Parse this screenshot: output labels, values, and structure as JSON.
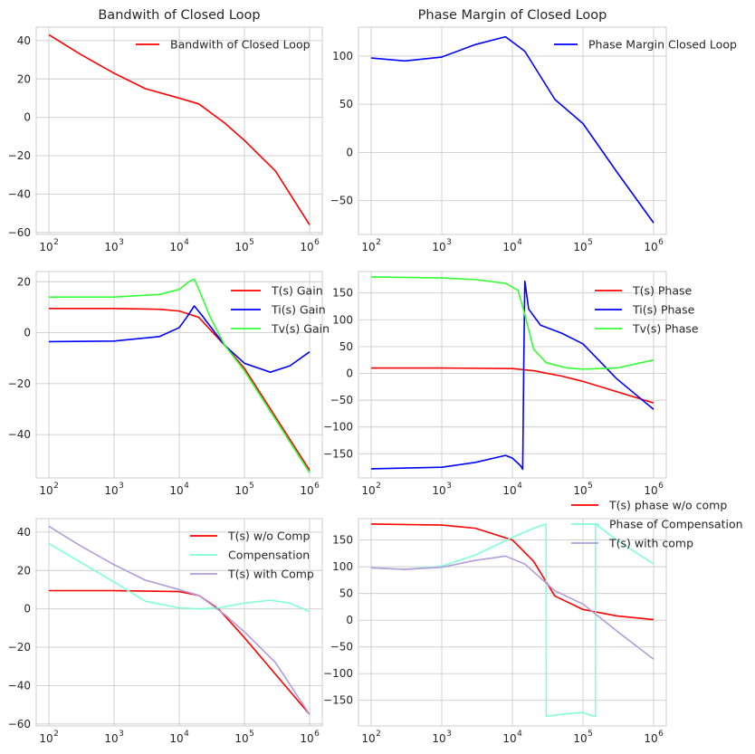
{
  "chart_data": [
    {
      "type": "line",
      "title": "Bandwith of Closed Loop",
      "x_scale": "log",
      "xlim": [
        100,
        1000000
      ],
      "ylim": [
        -61,
        47
      ],
      "xticks": [
        {
          "v": 100,
          "e": "2"
        },
        {
          "v": 1000,
          "e": "3"
        },
        {
          "v": 10000,
          "e": "4"
        },
        {
          "v": 100000,
          "e": "5"
        },
        {
          "v": 1000000,
          "e": "6"
        }
      ],
      "yticks": [
        40,
        20,
        0,
        -20,
        -40,
        -60
      ],
      "grid": true,
      "legend_position": "top-right",
      "series": [
        {
          "name": "Bandwith of Closed Loop",
          "color": "#ff0000",
          "x": [
            100,
            300,
            1000,
            3000,
            10000,
            20000,
            50000,
            100000,
            300000,
            1000000
          ],
          "y": [
            43,
            33,
            23,
            15,
            10,
            7,
            -3,
            -12,
            -28,
            -56
          ]
        }
      ]
    },
    {
      "type": "line",
      "title": "Phase Margin of Closed Loop",
      "x_scale": "log",
      "xlim": [
        100,
        1000000
      ],
      "ylim": [
        -85,
        130
      ],
      "xticks": [
        {
          "v": 100,
          "e": "2"
        },
        {
          "v": 1000,
          "e": "3"
        },
        {
          "v": 10000,
          "e": "4"
        },
        {
          "v": 100000,
          "e": "5"
        },
        {
          "v": 1000000,
          "e": "6"
        }
      ],
      "yticks": [
        100,
        50,
        0,
        -50
      ],
      "grid": true,
      "legend_position": "top-right",
      "series": [
        {
          "name": "Phase Margin Closed Loop",
          "color": "#0000ff",
          "x": [
            100,
            300,
            1000,
            3000,
            8000,
            15000,
            40000,
            100000,
            300000,
            1000000
          ],
          "y": [
            98,
            95,
            99,
            112,
            120,
            105,
            55,
            30,
            -20,
            -73
          ]
        }
      ]
    },
    {
      "type": "line",
      "x_scale": "log",
      "xlim": [
        100,
        1000000
      ],
      "ylim": [
        -57,
        24
      ],
      "xticks": [
        {
          "v": 100,
          "e": "2"
        },
        {
          "v": 1000,
          "e": "3"
        },
        {
          "v": 10000,
          "e": "4"
        },
        {
          "v": 100000,
          "e": "5"
        },
        {
          "v": 1000000,
          "e": "6"
        }
      ],
      "yticks": [
        20,
        0,
        -20,
        -40
      ],
      "grid": true,
      "legend_position": "top-right",
      "series": [
        {
          "name": "T(s) Gain",
          "color": "#ff0000",
          "x": [
            100,
            1000,
            5000,
            10000,
            20000,
            50000,
            100000,
            1000000
          ],
          "y": [
            9.5,
            9.5,
            9.2,
            8.5,
            6,
            -5,
            -14,
            -54
          ]
        },
        {
          "name": "Ti(s) Gain",
          "color": "#0000ff",
          "x": [
            100,
            1000,
            5000,
            10000,
            13000,
            17000,
            22000,
            50000,
            100000,
            250000,
            500000,
            1000000
          ],
          "y": [
            -3.5,
            -3.3,
            -1.5,
            2,
            6,
            10.5,
            7,
            -5,
            -12,
            -15.5,
            -13,
            -7.5
          ]
        },
        {
          "name": "Tv(s) Gain",
          "color": "#33ff33",
          "x": [
            100,
            1000,
            5000,
            10000,
            14000,
            17000,
            20000,
            30000,
            50000,
            100000,
            1000000
          ],
          "y": [
            14,
            14,
            15,
            17,
            20,
            21,
            17,
            6,
            -5,
            -15,
            -55
          ]
        }
      ]
    },
    {
      "type": "line",
      "x_scale": "log",
      "xlim": [
        100,
        1000000
      ],
      "ylim": [
        -195,
        190
      ],
      "xticks": [
        {
          "v": 100,
          "e": "2"
        },
        {
          "v": 1000,
          "e": "3"
        },
        {
          "v": 10000,
          "e": "4"
        },
        {
          "v": 100000,
          "e": "5"
        },
        {
          "v": 1000000,
          "e": "6"
        }
      ],
      "yticks": [
        150,
        100,
        50,
        0,
        -50,
        -100,
        -150
      ],
      "grid": true,
      "legend_position": "top-right",
      "series": [
        {
          "name": "T(s) Phase",
          "color": "#ff0000",
          "x": [
            100,
            1000,
            10000,
            20000,
            50000,
            100000,
            1000000
          ],
          "y": [
            10,
            10,
            9,
            5,
            -5,
            -15,
            -55
          ]
        },
        {
          "name": "Ti(s) Phase",
          "color": "#0000ff",
          "x": [
            100,
            1000,
            3000,
            8000,
            10000,
            13000,
            14000,
            14500,
            15000,
            17000,
            25000,
            50000,
            100000,
            300000,
            1000000
          ],
          "y": [
            -178,
            -175,
            -166,
            -153,
            -158,
            -172,
            -179,
            20,
            172,
            120,
            90,
            75,
            55,
            -10,
            -67
          ]
        },
        {
          "name": "Tv(s) Phase",
          "color": "#33ff33",
          "x": [
            100,
            1000,
            3000,
            8000,
            12000,
            15000,
            20000,
            30000,
            60000,
            100000,
            300000,
            1000000
          ],
          "y": [
            180,
            178,
            175,
            168,
            155,
            110,
            45,
            20,
            10,
            8,
            10,
            25
          ]
        }
      ]
    },
    {
      "type": "line",
      "x_scale": "log",
      "xlim": [
        100,
        1000000
      ],
      "ylim": [
        -61,
        47
      ],
      "xticks": [
        {
          "v": 100,
          "e": "2"
        },
        {
          "v": 1000,
          "e": "3"
        },
        {
          "v": 10000,
          "e": "4"
        },
        {
          "v": 100000,
          "e": "5"
        },
        {
          "v": 1000000,
          "e": "6"
        }
      ],
      "yticks": [
        40,
        20,
        0,
        -20,
        -40,
        -60
      ],
      "grid": true,
      "legend_position": "top-right",
      "series": [
        {
          "name": "T(s) w/o Comp",
          "color": "#ff0000",
          "x": [
            100,
            1000,
            10000,
            20000,
            40000,
            100000,
            1000000
          ],
          "y": [
            9.5,
            9.5,
            9,
            7,
            0,
            -15,
            -55
          ]
        },
        {
          "name": "Compensation",
          "color": "#80ffd4",
          "x": [
            100,
            1000,
            3000,
            10000,
            20000,
            40000,
            100000,
            250000,
            500000,
            1000000
          ],
          "y": [
            34,
            14,
            4,
            0.5,
            0,
            0.5,
            3,
            4.5,
            3,
            -1.5
          ]
        },
        {
          "name": "T(s) with Comp",
          "color": "#b19cd9",
          "x": [
            100,
            300,
            1000,
            3000,
            10000,
            20000,
            50000,
            100000,
            300000,
            1000000
          ],
          "y": [
            43,
            33,
            23,
            15,
            10,
            7,
            -3,
            -12,
            -28,
            -55
          ]
        }
      ]
    },
    {
      "type": "line",
      "x_scale": "log",
      "xlim": [
        100,
        1000000
      ],
      "ylim": [
        -198,
        190
      ],
      "xticks": [
        {
          "v": 100,
          "e": "2"
        },
        {
          "v": 1000,
          "e": "3"
        },
        {
          "v": 10000,
          "e": "4"
        },
        {
          "v": 100000,
          "e": "5"
        },
        {
          "v": 1000000,
          "e": "6"
        }
      ],
      "yticks": [
        150,
        100,
        50,
        0,
        -50,
        -100,
        -150
      ],
      "grid": true,
      "legend_position": "top-right",
      "series": [
        {
          "name": "T(s) phase w/o comp",
          "color": "#ff0000",
          "x": [
            100,
            1000,
            3000,
            10000,
            20000,
            40000,
            100000,
            300000,
            1000000
          ],
          "y": [
            180,
            178,
            172,
            150,
            110,
            45,
            20,
            8,
            1
          ]
        },
        {
          "name": "Phase of Compensation",
          "color": "#80ffd4",
          "x": [
            100,
            300,
            1000,
            3000,
            10000,
            20000,
            30000,
            30200,
            60000,
            100000,
            140000,
            150000,
            150500,
            300000,
            1000000
          ],
          "y": [
            98,
            95,
            101,
            122,
            155,
            172,
            180,
            -180,
            -175,
            -173,
            -180,
            -180,
            180,
            150,
            105
          ]
        },
        {
          "name": "T(s) with comp",
          "color": "#b19cd9",
          "x": [
            100,
            300,
            1000,
            3000,
            8000,
            15000,
            40000,
            100000,
            300000,
            1000000
          ],
          "y": [
            98,
            95,
            99,
            112,
            120,
            105,
            55,
            30,
            -20,
            -73
          ]
        }
      ]
    }
  ]
}
